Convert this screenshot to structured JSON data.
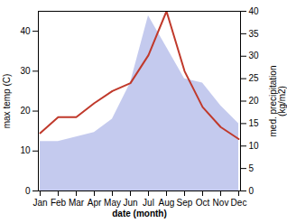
{
  "chart_data": {
    "type": "line",
    "xlabel": "date (month)",
    "ylabel": "max temp (C)",
    "y2label": "med. precipitation\n(kg/m2)",
    "categories": [
      "Jan",
      "Feb",
      "Mar",
      "Apr",
      "May",
      "Jun",
      "Jul",
      "Aug",
      "Sep",
      "Oct",
      "Nov",
      "Dec"
    ],
    "series": [
      {
        "type": "area",
        "axis": "y2",
        "color": "#b0b8e8",
        "values": [
          11,
          11,
          12,
          13,
          16,
          24,
          39,
          32,
          25,
          24,
          19,
          15
        ]
      },
      {
        "type": "line",
        "color": "#c0392b",
        "values": [
          14.5,
          18.5,
          18.5,
          22,
          25,
          27,
          34,
          45,
          30,
          21,
          16,
          13
        ]
      }
    ],
    "ylim": [
      0,
      45
    ],
    "yticks": [
      0,
      10,
      20,
      30,
      40
    ],
    "y2lim": [
      0,
      40
    ],
    "y2ticks": [
      0,
      5,
      10,
      15,
      20,
      25,
      30,
      35,
      40
    ]
  }
}
